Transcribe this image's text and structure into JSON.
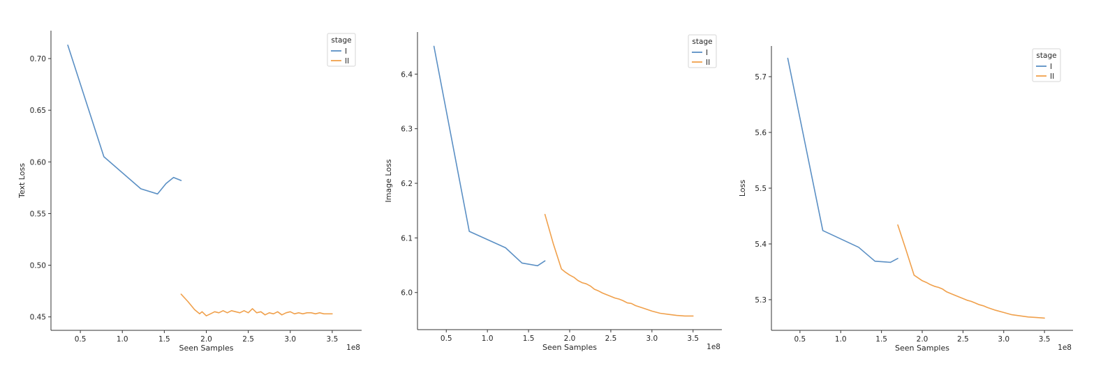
{
  "chart_data": [
    {
      "type": "line",
      "xlabel": "Seen Samples",
      "ylabel": "Text Loss",
      "x_offset_text": "1e8",
      "x_unit_scale": 100000000.0,
      "xlim": [
        0.15,
        3.85
      ],
      "ylim": [
        0.437,
        0.727
      ],
      "xticks": [
        0.5,
        1.0,
        1.5,
        2.0,
        2.5,
        3.0,
        3.5
      ],
      "xtick_labels": [
        "0.5",
        "1.0",
        "1.5",
        "2.0",
        "2.5",
        "3.0",
        "3.5"
      ],
      "yticks": [
        0.45,
        0.5,
        0.55,
        0.6,
        0.65,
        0.7
      ],
      "ytick_labels": [
        "0.45",
        "0.50",
        "0.55",
        "0.60",
        "0.65",
        "0.70"
      ],
      "grid": false,
      "legend": {
        "title": "stage",
        "placement": "upper right"
      },
      "series": [
        {
          "name": "I",
          "color": "#5a8fc4",
          "x": [
            0.35,
            0.78,
            1.22,
            1.42,
            1.52,
            1.61,
            1.7
          ],
          "y": [
            0.713,
            0.605,
            0.574,
            0.569,
            0.579,
            0.585,
            0.582
          ]
        },
        {
          "name": "II",
          "color": "#f0a04b",
          "x": [
            1.7,
            1.78,
            1.86,
            1.92,
            1.95,
            2.0,
            2.05,
            2.1,
            2.15,
            2.2,
            2.25,
            2.3,
            2.35,
            2.4,
            2.45,
            2.5,
            2.55,
            2.6,
            2.65,
            2.7,
            2.75,
            2.8,
            2.85,
            2.9,
            2.95,
            3.0,
            3.05,
            3.1,
            3.15,
            3.2,
            3.25,
            3.3,
            3.35,
            3.4,
            3.45,
            3.5
          ],
          "y": [
            0.472,
            0.465,
            0.457,
            0.453,
            0.455,
            0.451,
            0.453,
            0.455,
            0.454,
            0.456,
            0.454,
            0.456,
            0.455,
            0.454,
            0.456,
            0.454,
            0.458,
            0.454,
            0.455,
            0.452,
            0.454,
            0.453,
            0.455,
            0.452,
            0.454,
            0.455,
            0.453,
            0.454,
            0.453,
            0.454,
            0.454,
            0.453,
            0.454,
            0.453,
            0.453,
            0.453
          ]
        }
      ]
    },
    {
      "type": "line",
      "xlabel": "Seen Samples",
      "ylabel": "Image Loss",
      "x_offset_text": "1e8",
      "x_unit_scale": 100000000.0,
      "xlim": [
        0.15,
        3.85
      ],
      "ylim": [
        5.932,
        6.477
      ],
      "xticks": [
        0.5,
        1.0,
        1.5,
        2.0,
        2.5,
        3.0,
        3.5
      ],
      "xtick_labels": [
        "0.5",
        "1.0",
        "1.5",
        "2.0",
        "2.5",
        "3.0",
        "3.5"
      ],
      "yticks": [
        6.0,
        6.1,
        6.2,
        6.3,
        6.4
      ],
      "ytick_labels": [
        "6.0",
        "6.1",
        "6.2",
        "6.3",
        "6.4"
      ],
      "grid": false,
      "legend": {
        "title": "stage",
        "placement": "upper right"
      },
      "series": [
        {
          "name": "I",
          "color": "#5a8fc4",
          "x": [
            0.35,
            0.78,
            1.22,
            1.42,
            1.61,
            1.7
          ],
          "y": [
            6.451,
            6.112,
            6.082,
            6.054,
            6.049,
            6.058
          ]
        },
        {
          "name": "II",
          "color": "#f0a04b",
          "x": [
            1.7,
            1.8,
            1.9,
            1.95,
            2.0,
            2.05,
            2.1,
            2.15,
            2.2,
            2.25,
            2.3,
            2.35,
            2.4,
            2.45,
            2.5,
            2.55,
            2.6,
            2.65,
            2.7,
            2.75,
            2.8,
            2.9,
            3.0,
            3.1,
            3.2,
            3.3,
            3.4,
            3.5
          ],
          "y": [
            6.143,
            6.09,
            6.043,
            6.037,
            6.032,
            6.028,
            6.022,
            6.018,
            6.016,
            6.012,
            6.006,
            6.003,
            5.999,
            5.996,
            5.993,
            5.99,
            5.988,
            5.985,
            5.981,
            5.98,
            5.976,
            5.971,
            5.966,
            5.962,
            5.96,
            5.958,
            5.957,
            5.957
          ]
        }
      ]
    },
    {
      "type": "line",
      "xlabel": "Seen Samples",
      "ylabel": "Loss",
      "x_offset_text": "1e8",
      "x_unit_scale": 100000000.0,
      "xlim": [
        0.15,
        3.85
      ],
      "ylim": [
        5.245,
        5.755
      ],
      "xticks": [
        0.5,
        1.0,
        1.5,
        2.0,
        2.5,
        3.0,
        3.5
      ],
      "xtick_labels": [
        "0.5",
        "1.0",
        "1.5",
        "2.0",
        "2.5",
        "3.0",
        "3.5"
      ],
      "yticks": [
        5.3,
        5.4,
        5.5,
        5.6,
        5.7
      ],
      "ytick_labels": [
        "5.3",
        "5.4",
        "5.5",
        "5.6",
        "5.7"
      ],
      "grid": false,
      "legend": {
        "title": "stage",
        "placement": "upper right"
      },
      "series": [
        {
          "name": "I",
          "color": "#5a8fc4",
          "x": [
            0.35,
            0.78,
            1.22,
            1.42,
            1.61,
            1.7
          ],
          "y": [
            5.733,
            5.424,
            5.394,
            5.369,
            5.367,
            5.374
          ]
        },
        {
          "name": "II",
          "color": "#f0a04b",
          "x": [
            1.7,
            1.8,
            1.9,
            1.95,
            2.0,
            2.05,
            2.1,
            2.15,
            2.2,
            2.25,
            2.3,
            2.35,
            2.4,
            2.45,
            2.5,
            2.55,
            2.6,
            2.65,
            2.7,
            2.75,
            2.8,
            2.9,
            3.0,
            3.1,
            3.2,
            3.3,
            3.4,
            3.5
          ],
          "y": [
            5.434,
            5.39,
            5.344,
            5.339,
            5.334,
            5.331,
            5.327,
            5.324,
            5.322,
            5.319,
            5.314,
            5.311,
            5.308,
            5.305,
            5.302,
            5.299,
            5.297,
            5.294,
            5.291,
            5.289,
            5.286,
            5.281,
            5.277,
            5.273,
            5.271,
            5.269,
            5.268,
            5.267
          ]
        }
      ]
    }
  ]
}
